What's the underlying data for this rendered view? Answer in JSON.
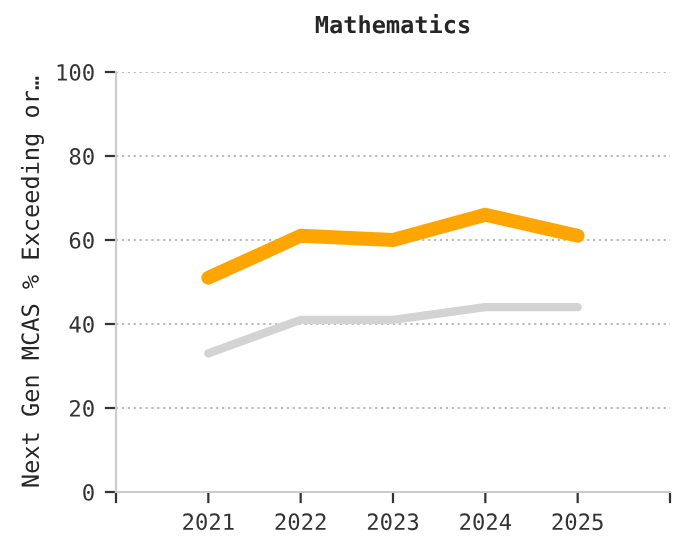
{
  "chart_data": {
    "type": "line",
    "title": "Mathematics",
    "ylabel": "Next Gen MCAS % Exceeding or…",
    "x": [
      2021,
      2022,
      2023,
      2024,
      2025
    ],
    "series": [
      {
        "color": "#ffa500",
        "values": [
          51,
          61,
          60,
          66,
          61
        ]
      },
      {
        "color": "#d3d3d3",
        "values": [
          33,
          41,
          41,
          44,
          44
        ]
      }
    ],
    "xlim": [
      2020,
      2026
    ],
    "xticks": [
      {
        "value": 2020,
        "label": null
      },
      2021,
      2022,
      2023,
      2024,
      2025,
      {
        "value": 2026,
        "label": null
      }
    ],
    "ylim": [
      0,
      100
    ],
    "yticks": [
      0,
      20,
      40,
      60,
      80,
      100
    ],
    "grid": "y",
    "marker": "none",
    "line_style": "solid"
  }
}
